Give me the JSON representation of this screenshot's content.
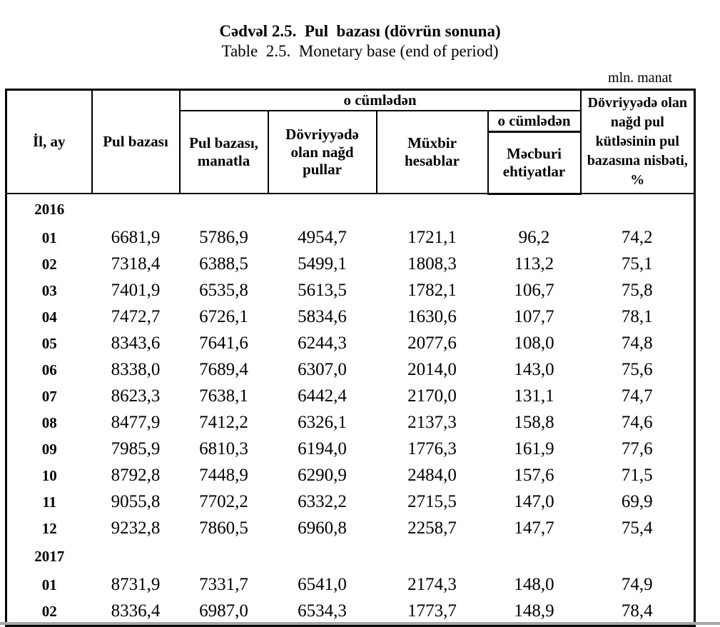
{
  "page": {
    "title_az": "Cədvəl 2.5.  Pul  bazası (dövrün sonuna)",
    "title_en": "Table  2.5.  Monetary base (end of period)",
    "unit_label": "mln. manat"
  },
  "table": {
    "headers": {
      "col_year_month": "İl, ay",
      "col_monetary_base": "Pul bazası",
      "group_of_which": "o cümlədən",
      "col_base_in_manat": "Pul  bazası,\nmanatla",
      "col_cash_in_circulation": "Dövriyyədə\nolan nağd\npullar",
      "col_correspondent_accounts": "Müxbir\nhesablar",
      "subgroup_of_which": "o cümlədən",
      "col_required_reserves": "Məcburi\nehtiyatlar",
      "col_cash_to_base_ratio": "Dövriyyədə olan\nnağd pul\nkütləsinin pul\nbazasına nisbəti,\n%"
    },
    "rows": [
      {
        "type": "year",
        "label": "2016"
      },
      {
        "type": "month",
        "label": "01",
        "values": [
          "6681,9",
          "5786,9",
          "4954,7",
          "1721,1",
          "96,2",
          "74,2"
        ]
      },
      {
        "type": "month",
        "label": "02",
        "values": [
          "7318,4",
          "6388,5",
          "5499,1",
          "1808,3",
          "113,2",
          "75,1"
        ]
      },
      {
        "type": "month",
        "label": "03",
        "values": [
          "7401,9",
          "6535,8",
          "5613,5",
          "1782,1",
          "106,7",
          "75,8"
        ]
      },
      {
        "type": "month",
        "label": "04",
        "values": [
          "7472,7",
          "6726,1",
          "5834,6",
          "1630,6",
          "107,7",
          "78,1"
        ]
      },
      {
        "type": "month",
        "label": "05",
        "values": [
          "8343,6",
          "7641,6",
          "6244,3",
          "2077,6",
          "108,0",
          "74,8"
        ]
      },
      {
        "type": "month",
        "label": "06",
        "values": [
          "8338,0",
          "7689,4",
          "6307,0",
          "2014,0",
          "143,0",
          "75,6"
        ]
      },
      {
        "type": "month",
        "label": "07",
        "values": [
          "8623,3",
          "7638,1",
          "6442,4",
          "2170,0",
          "131,1",
          "74,7"
        ]
      },
      {
        "type": "month",
        "label": "08",
        "values": [
          "8477,9",
          "7412,2",
          "6326,1",
          "2137,3",
          "158,8",
          "74,6"
        ]
      },
      {
        "type": "month",
        "label": "09",
        "values": [
          "7985,9",
          "6810,3",
          "6194,0",
          "1776,3",
          "161,9",
          "77,6"
        ]
      },
      {
        "type": "month",
        "label": "10",
        "values": [
          "8792,8",
          "7448,9",
          "6290,9",
          "2484,0",
          "157,6",
          "71,5"
        ]
      },
      {
        "type": "month",
        "label": "11",
        "values": [
          "9055,8",
          "7702,2",
          "6332,2",
          "2715,5",
          "147,0",
          "69,9"
        ]
      },
      {
        "type": "month",
        "label": "12",
        "values": [
          "9232,8",
          "7860,5",
          "6960,8",
          "2258,7",
          "147,7",
          "75,4"
        ]
      },
      {
        "type": "year",
        "label": "2017"
      },
      {
        "type": "month",
        "label": "01",
        "values": [
          "8731,9",
          "7331,7",
          "6541,0",
          "2174,3",
          "148,0",
          "74,9"
        ]
      },
      {
        "type": "month",
        "label": "02",
        "values": [
          "8336,4",
          "6987,0",
          "6534,3",
          "1773,7",
          "148,9",
          "78,4"
        ]
      }
    ]
  }
}
